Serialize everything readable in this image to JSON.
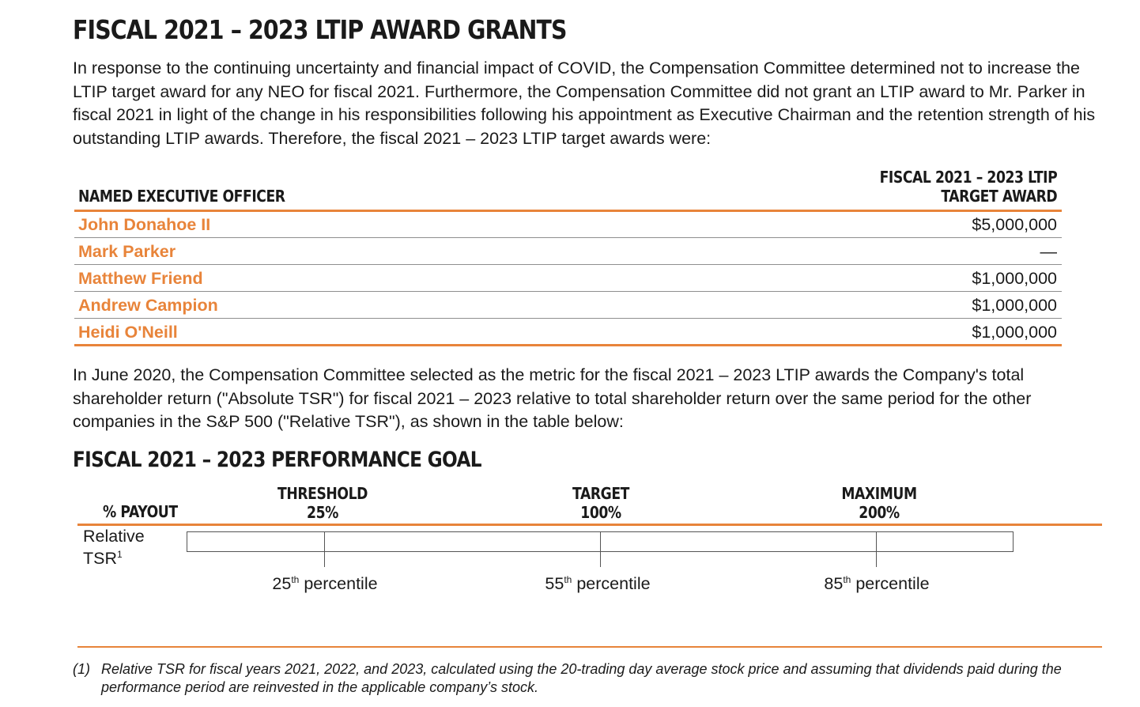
{
  "title": "FISCAL 2021 – 2023 LTIP AWARD GRANTS",
  "intro_paragraph": "In response to the continuing uncertainty and financial impact of COVID, the Compensation Committee determined not to increase the LTIP target award for any NEO for fiscal 2021. Furthermore, the Compensation Committee did not grant an LTIP award to Mr. Parker in fiscal 2021 in light of the change in his responsibilities following his appointment as Executive Chairman and the retention strength of his outstanding LTIP awards. Therefore, the fiscal 2021 – 2023 LTIP target awards were:",
  "award_table": {
    "header_left": "NAMED EXECUTIVE OFFICER",
    "header_right_line1": "FISCAL 2021 – 2023 LTIP",
    "header_right_line2": "TARGET AWARD",
    "rows": [
      {
        "name": "John Donahoe II",
        "award": "$5,000,000"
      },
      {
        "name": "Mark Parker",
        "award": "—"
      },
      {
        "name": "Matthew Friend",
        "award": "$1,000,000"
      },
      {
        "name": "Andrew Campion",
        "award": "$1,000,000"
      },
      {
        "name": "Heidi O'Neill",
        "award": "$1,000,000"
      }
    ]
  },
  "metric_paragraph": "In June 2020, the Compensation Committee selected as the metric for the fiscal 2021 – 2023 LTIP awards the Company's total shareholder return (\"Absolute TSR\") for fiscal 2021 – 2023 relative to total shareholder return over the same period for the other companies in the S&P 500 (\"Relative TSR\"), as shown in the table below:",
  "performance_goal": {
    "title": "FISCAL 2021 – 2023 PERFORMANCE GOAL",
    "payout_label": "% PAYOUT",
    "levels": [
      {
        "name": "THRESHOLD",
        "payout": "25%",
        "percentile_num": "25",
        "percentile_sup": "th",
        "percentile_word": "percentile"
      },
      {
        "name": "TARGET",
        "payout": "100%",
        "percentile_num": "55",
        "percentile_sup": "th",
        "percentile_word": "percentile"
      },
      {
        "name": "MAXIMUM",
        "payout": "200%",
        "percentile_num": "85",
        "percentile_sup": "th",
        "percentile_word": "percentile"
      }
    ],
    "metric_label_line1": "Relative",
    "metric_label_line2": "TSR",
    "metric_label_sup": "1"
  },
  "footnote": {
    "number": "(1)",
    "text": "Relative TSR for fiscal years 2021, 2022, and 2023, calculated using the 20-trading day average stock price and assuming that dividends paid during the performance period are reinvested in the applicable company’s stock."
  },
  "colors": {
    "accent": "#e8843a",
    "text": "#1a1a1a",
    "rule_gray": "#8f8f8f"
  }
}
